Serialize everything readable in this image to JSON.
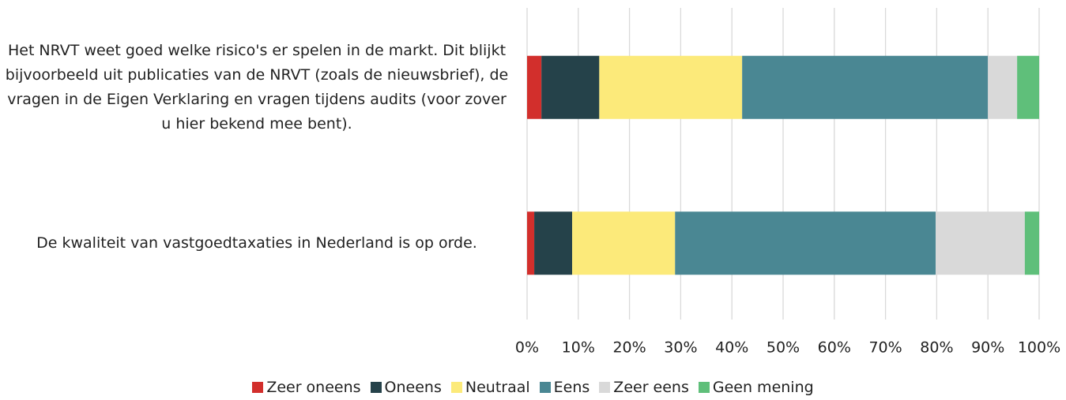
{
  "chart_data": {
    "type": "stacked-barh",
    "categories": [
      "Het NRVT weet goed welke risico's er spelen in de markt. Dit blijkt bijvoorbeeld uit publicaties van de NRVT (zoals de nieuwsbrief), de vragen in de Eigen Verklaring en vragen tijdens audits (voor zover u hier bekend mee bent).",
      "De kwaliteit van vastgoedtaxaties in Nederland is op orde."
    ],
    "series": [
      {
        "name": "Zeer oneens",
        "color": "#d22f2c",
        "values": [
          2.8,
          1.4
        ]
      },
      {
        "name": "Oneens",
        "color": "#25424a",
        "values": [
          11.3,
          7.4
        ]
      },
      {
        "name": "Neutraal",
        "color": "#fcea7a",
        "values": [
          27.9,
          20.1
        ]
      },
      {
        "name": "Eens",
        "color": "#4a8793",
        "values": [
          48.0,
          50.9
        ]
      },
      {
        "name": "Zeer eens",
        "color": "#d9d9d9",
        "values": [
          5.7,
          17.4
        ]
      },
      {
        "name": "Geen mening",
        "color": "#5fbf7a",
        "values": [
          4.3,
          2.8
        ]
      }
    ],
    "xlim": [
      0,
      100
    ],
    "xticks": [
      {
        "value": 0,
        "label": "0%"
      },
      {
        "value": 10,
        "label": "10%"
      },
      {
        "value": 20,
        "label": "20%"
      },
      {
        "value": 30,
        "label": "30%"
      },
      {
        "value": 40,
        "label": "40%"
      },
      {
        "value": 50,
        "label": "50%"
      },
      {
        "value": 60,
        "label": "60%"
      },
      {
        "value": 70,
        "label": "70%"
      },
      {
        "value": 80,
        "label": "80%"
      },
      {
        "value": 90,
        "label": "90%"
      },
      {
        "value": 100,
        "label": "100%"
      }
    ],
    "grid": true,
    "legend": "bottom"
  }
}
